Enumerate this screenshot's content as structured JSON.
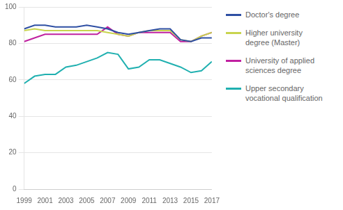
{
  "chart_data": {
    "type": "line",
    "x": [
      1999,
      2000,
      2001,
      2002,
      2003,
      2004,
      2005,
      2006,
      2007,
      2008,
      2009,
      2010,
      2011,
      2012,
      2013,
      2014,
      2015,
      2016,
      2017
    ],
    "series": [
      {
        "name": "Doctor's degree",
        "color": "#2e4fa3",
        "values": [
          88,
          90,
          90,
          89,
          89,
          89,
          90,
          89,
          88,
          86,
          85,
          86,
          87,
          88,
          88,
          82,
          81,
          83,
          83
        ]
      },
      {
        "name": "Higher university\ndegree (Master)",
        "color": "#c8d44e",
        "values": [
          87,
          88,
          87,
          87,
          87,
          87,
          87,
          87,
          86,
          85,
          84,
          86,
          87,
          87,
          87,
          82,
          81,
          84,
          86
        ]
      },
      {
        "name": "University of applied\nsciences degree",
        "color": "#c020a0",
        "values": [
          81,
          83,
          85,
          85,
          85,
          85,
          85,
          85,
          89,
          85,
          84,
          86,
          86,
          86,
          86,
          81,
          81,
          84,
          86
        ]
      },
      {
        "name": "Upper secondary\nvocational qualification",
        "color": "#20b0b0",
        "values": [
          58,
          62,
          63,
          63,
          67,
          68,
          70,
          72,
          75,
          74,
          66,
          67,
          71,
          71,
          69,
          67,
          64,
          65,
          70
        ]
      }
    ],
    "xlim": [
      1999,
      2017
    ],
    "xticks": [
      1999,
      2001,
      2003,
      2005,
      2007,
      2009,
      2011,
      2013,
      2015,
      2017
    ],
    "ylim": [
      0,
      100
    ],
    "yticks": [
      0,
      20,
      40,
      60,
      80,
      100
    ],
    "grid": true,
    "legend": "right"
  }
}
